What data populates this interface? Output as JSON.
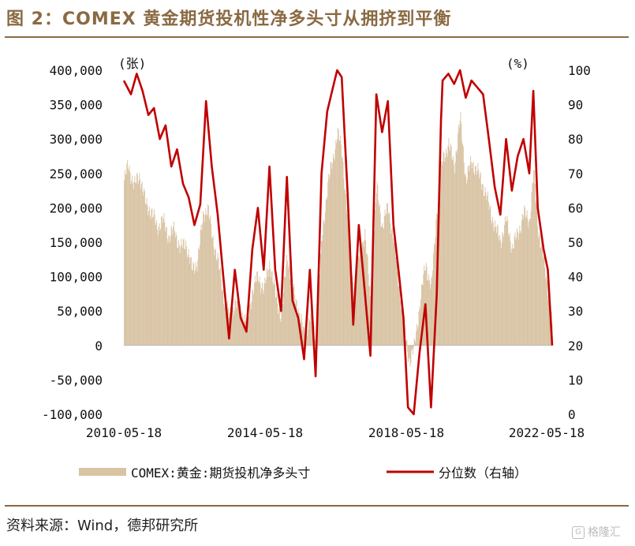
{
  "title": "图 2：COMEX 黄金期货投机性净多头寸从拥挤到平衡",
  "source": "资料来源：Wind，德邦研究所",
  "watermark": "格隆汇",
  "chart_data": {
    "type": "bar+line",
    "left_unit": "(张)",
    "right_unit": "(%)",
    "left_axis": {
      "min": -100000,
      "max": 400000,
      "step": 50000,
      "ticks": [
        "400,000",
        "350,000",
        "300,000",
        "250,000",
        "200,000",
        "150,000",
        "100,000",
        "50,000",
        "0",
        "-50,000",
        "-100,000"
      ]
    },
    "right_axis": {
      "min": 0,
      "max": 100,
      "step": 10,
      "ticks": [
        "100",
        "90",
        "80",
        "70",
        "60",
        "50",
        "40",
        "30",
        "20",
        "10",
        "0"
      ]
    },
    "x_ticks": [
      "2010-05-18",
      "2014-05-18",
      "2018-05-18",
      "2022-05-18"
    ],
    "x_range": [
      "2010-05-18",
      "2022-09-30"
    ],
    "grid": false,
    "legend_position": "bottom",
    "series": [
      {
        "name": "COMEX:黄金:期货投机净多头寸",
        "axis": "left",
        "kind": "bar",
        "color": "#d8c3a3",
        "points": [
          [
            "2010-05-18",
            240000
          ],
          [
            "2010-07-01",
            262000
          ],
          [
            "2010-09-01",
            232000
          ],
          [
            "2010-11-01",
            248000
          ],
          [
            "2011-01-01",
            205000
          ],
          [
            "2011-03-01",
            195000
          ],
          [
            "2011-05-01",
            172000
          ],
          [
            "2011-07-01",
            182000
          ],
          [
            "2011-09-01",
            158000
          ],
          [
            "2011-11-01",
            168000
          ],
          [
            "2012-01-01",
            140000
          ],
          [
            "2012-03-01",
            150000
          ],
          [
            "2012-05-01",
            110000
          ],
          [
            "2012-07-01",
            122000
          ],
          [
            "2012-09-01",
            192000
          ],
          [
            "2012-10-15",
            200000
          ],
          [
            "2012-12-01",
            160000
          ],
          [
            "2013-02-01",
            122000
          ],
          [
            "2013-04-01",
            72000
          ],
          [
            "2013-06-01",
            42000
          ],
          [
            "2013-08-01",
            62000
          ],
          [
            "2013-10-01",
            52000
          ],
          [
            "2013-12-01",
            28000
          ],
          [
            "2014-02-01",
            82000
          ],
          [
            "2014-04-01",
            100000
          ],
          [
            "2014-06-01",
            80000
          ],
          [
            "2014-08-01",
            122000
          ],
          [
            "2014-10-01",
            72000
          ],
          [
            "2014-12-01",
            42000
          ],
          [
            "2015-02-01",
            132000
          ],
          [
            "2015-04-01",
            82000
          ],
          [
            "2015-06-01",
            52000
          ],
          [
            "2015-08-01",
            12000
          ],
          [
            "2015-10-01",
            42000
          ],
          [
            "2015-12-01",
            12000
          ],
          [
            "2016-02-01",
            152000
          ],
          [
            "2016-04-01",
            232000
          ],
          [
            "2016-06-01",
            272000
          ],
          [
            "2016-07-15",
            310000
          ],
          [
            "2016-09-01",
            282000
          ],
          [
            "2016-11-01",
            182000
          ],
          [
            "2017-01-01",
            82000
          ],
          [
            "2017-03-01",
            132000
          ],
          [
            "2017-05-01",
            162000
          ],
          [
            "2017-07-01",
            62000
          ],
          [
            "2017-09-01",
            232000
          ],
          [
            "2017-11-01",
            172000
          ],
          [
            "2018-01-01",
            202000
          ],
          [
            "2018-03-01",
            152000
          ],
          [
            "2018-05-01",
            82000
          ],
          [
            "2018-07-01",
            12000
          ],
          [
            "2018-08-15",
            -22000
          ],
          [
            "2018-10-01",
            -5000
          ],
          [
            "2018-12-01",
            60000
          ],
          [
            "2019-02-01",
            120000
          ],
          [
            "2019-04-01",
            82000
          ],
          [
            "2019-06-01",
            202000
          ],
          [
            "2019-08-01",
            272000
          ],
          [
            "2019-10-01",
            292000
          ],
          [
            "2019-12-01",
            262000
          ],
          [
            "2020-02-01",
            330000
          ],
          [
            "2020-04-01",
            240000
          ],
          [
            "2020-06-01",
            268000
          ],
          [
            "2020-08-01",
            252000
          ],
          [
            "2020-10-01",
            232000
          ],
          [
            "2020-12-01",
            202000
          ],
          [
            "2021-02-01",
            172000
          ],
          [
            "2021-04-01",
            152000
          ],
          [
            "2021-06-01",
            182000
          ],
          [
            "2021-08-01",
            142000
          ],
          [
            "2021-10-01",
            162000
          ],
          [
            "2021-12-01",
            192000
          ],
          [
            "2022-02-01",
            182000
          ],
          [
            "2022-03-15",
            252000
          ],
          [
            "2022-05-01",
            172000
          ],
          [
            "2022-07-01",
            122000
          ],
          [
            "2022-09-01",
            62000
          ],
          [
            "2022-09-30",
            22000
          ]
        ]
      },
      {
        "name": "分位数（右轴）",
        "axis": "right",
        "kind": "line",
        "color": "#c00000",
        "points": [
          [
            "2010-05-18",
            97
          ],
          [
            "2010-08-01",
            93
          ],
          [
            "2010-10-01",
            99
          ],
          [
            "2010-12-01",
            94
          ],
          [
            "2011-02-01",
            87
          ],
          [
            "2011-04-01",
            89
          ],
          [
            "2011-06-01",
            80
          ],
          [
            "2011-08-01",
            84
          ],
          [
            "2011-10-01",
            72
          ],
          [
            "2011-12-01",
            77
          ],
          [
            "2012-02-01",
            67
          ],
          [
            "2012-04-01",
            63
          ],
          [
            "2012-06-01",
            55
          ],
          [
            "2012-08-01",
            61
          ],
          [
            "2012-10-01",
            91
          ],
          [
            "2012-12-01",
            72
          ],
          [
            "2013-02-01",
            58
          ],
          [
            "2013-04-01",
            40
          ],
          [
            "2013-06-01",
            22
          ],
          [
            "2013-08-01",
            42
          ],
          [
            "2013-10-01",
            28
          ],
          [
            "2013-12-01",
            24
          ],
          [
            "2014-02-01",
            48
          ],
          [
            "2014-04-01",
            60
          ],
          [
            "2014-06-01",
            42
          ],
          [
            "2014-08-01",
            72
          ],
          [
            "2014-10-01",
            42
          ],
          [
            "2014-12-01",
            30
          ],
          [
            "2015-02-01",
            69
          ],
          [
            "2015-04-01",
            33
          ],
          [
            "2015-06-01",
            28
          ],
          [
            "2015-08-01",
            16
          ],
          [
            "2015-10-01",
            42
          ],
          [
            "2015-12-01",
            11
          ],
          [
            "2016-02-01",
            70
          ],
          [
            "2016-04-01",
            88
          ],
          [
            "2016-06-01",
            95
          ],
          [
            "2016-07-15",
            100
          ],
          [
            "2016-09-01",
            98
          ],
          [
            "2016-11-01",
            65
          ],
          [
            "2017-01-01",
            26
          ],
          [
            "2017-03-01",
            55
          ],
          [
            "2017-05-01",
            36
          ],
          [
            "2017-07-01",
            17
          ],
          [
            "2017-09-01",
            93
          ],
          [
            "2017-11-01",
            82
          ],
          [
            "2018-01-01",
            91
          ],
          [
            "2018-03-01",
            55
          ],
          [
            "2018-05-01",
            40
          ],
          [
            "2018-06-15",
            28
          ],
          [
            "2018-08-01",
            2
          ],
          [
            "2018-10-01",
            0
          ],
          [
            "2018-12-01",
            18
          ],
          [
            "2019-02-01",
            32
          ],
          [
            "2019-04-01",
            2
          ],
          [
            "2019-06-01",
            35
          ],
          [
            "2019-07-15",
            85
          ],
          [
            "2019-08-01",
            97
          ],
          [
            "2019-10-01",
            99
          ],
          [
            "2019-12-01",
            96
          ],
          [
            "2020-02-01",
            100
          ],
          [
            "2020-04-01",
            92
          ],
          [
            "2020-06-01",
            97
          ],
          [
            "2020-08-01",
            95
          ],
          [
            "2020-10-01",
            93
          ],
          [
            "2020-12-01",
            80
          ],
          [
            "2021-02-01",
            66
          ],
          [
            "2021-04-01",
            58
          ],
          [
            "2021-06-01",
            80
          ],
          [
            "2021-08-01",
            65
          ],
          [
            "2021-10-01",
            75
          ],
          [
            "2021-12-01",
            80
          ],
          [
            "2022-02-01",
            70
          ],
          [
            "2022-03-15",
            94
          ],
          [
            "2022-05-01",
            60
          ],
          [
            "2022-07-01",
            48
          ],
          [
            "2022-08-15",
            42
          ],
          [
            "2022-09-30",
            20
          ]
        ]
      }
    ]
  }
}
